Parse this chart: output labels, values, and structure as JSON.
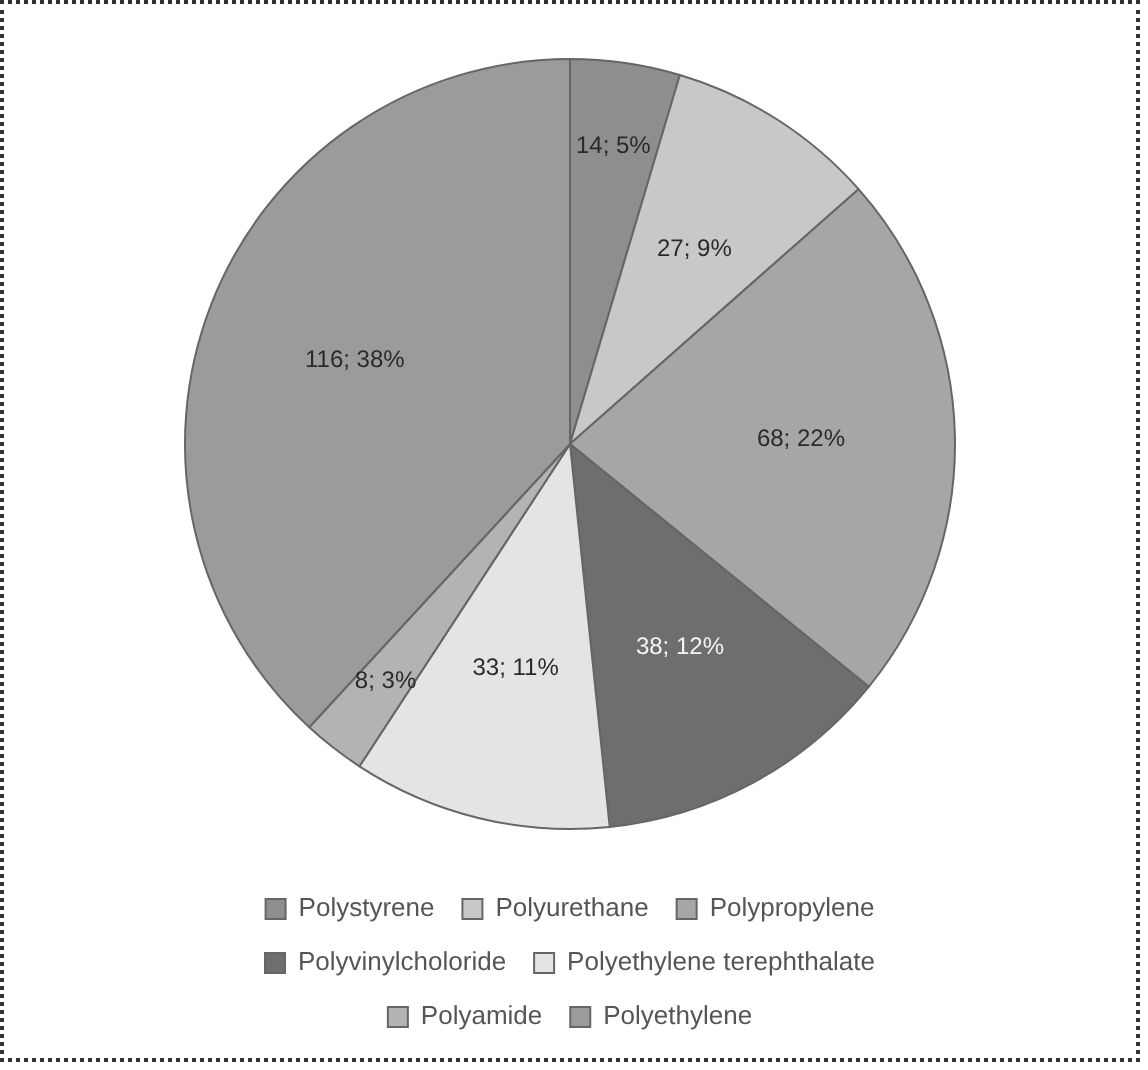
{
  "chart_data": {
    "type": "pie",
    "categories": [
      "Polystyrene",
      "Polyurethane",
      "Polypropylene",
      "Polyvinylcholoride",
      "Polyethylene terephthalate",
      "Polyamide",
      "Polyethylene"
    ],
    "values": [
      14,
      27,
      68,
      38,
      33,
      8,
      116
    ],
    "value_labels": [
      "14; 5%",
      "27; 9%",
      "68; 22%",
      "38; 12%",
      "33; 11%",
      "8; 3%",
      "116; 38%"
    ],
    "colors": [
      "#8e8e8e",
      "#c8c8c8",
      "#a6a6a6",
      "#6e6e6e",
      "#e4e4e4",
      "#b3b3b3",
      "#9b9b9b"
    ],
    "legend": "bottom"
  }
}
